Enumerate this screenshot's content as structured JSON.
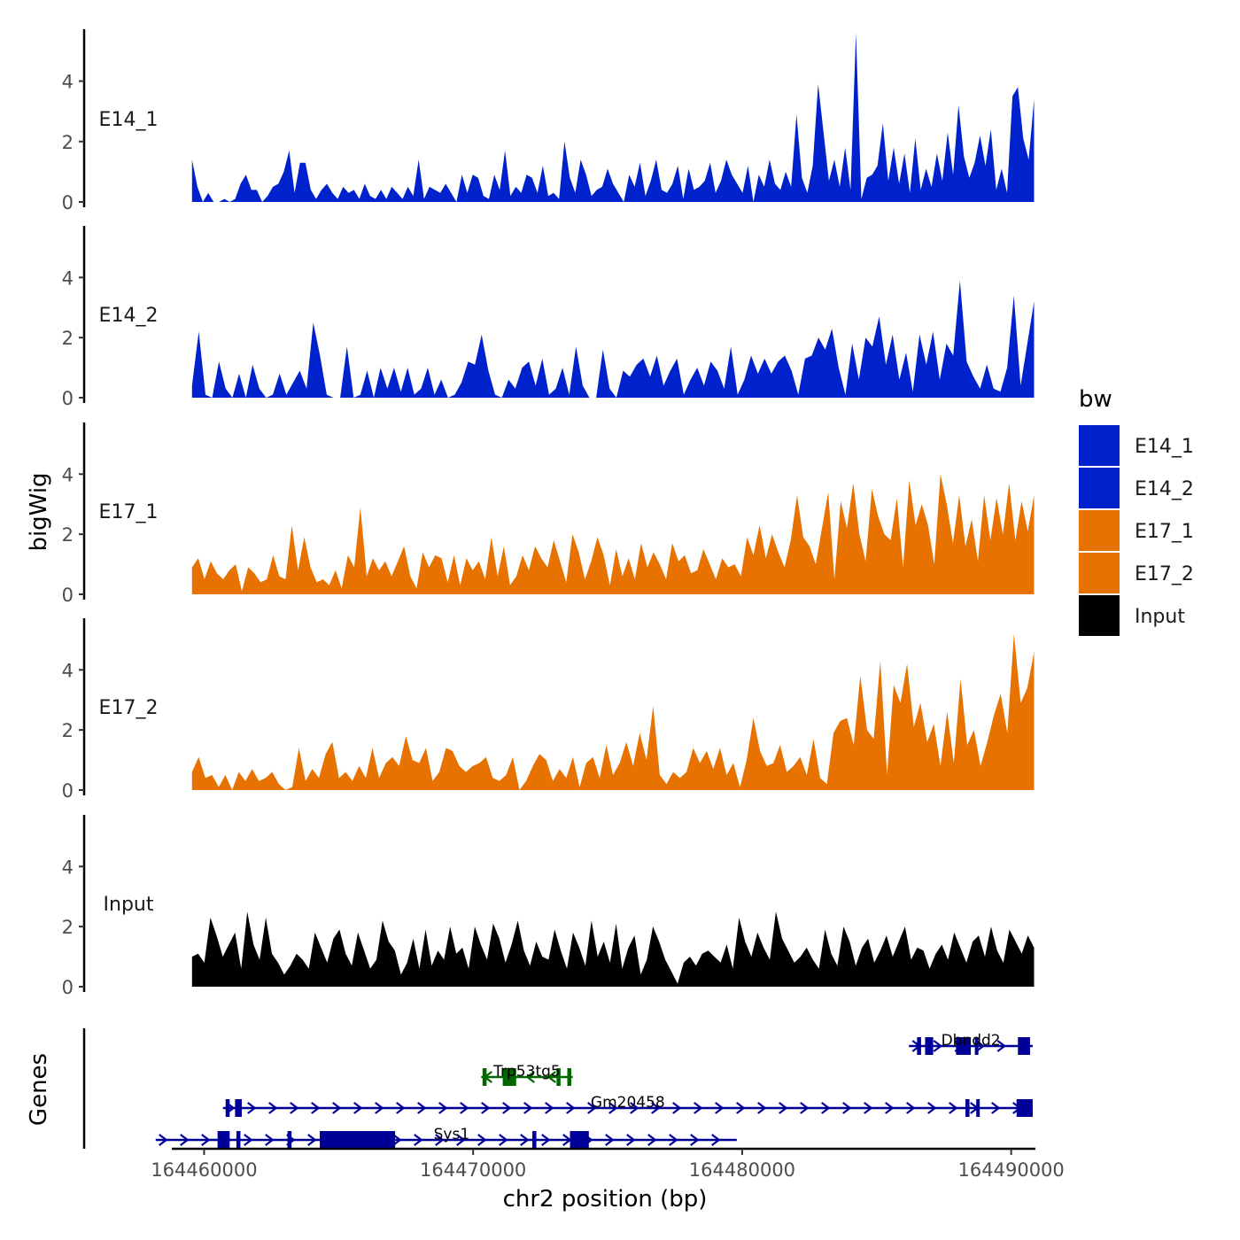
{
  "chart_data": {
    "type": "area",
    "title": "",
    "xlabel": "chr2 position (bp)",
    "ylabel": "bigWig",
    "genes_label": "Genes",
    "xlim": [
      164458800,
      164490900
    ],
    "ylim": [
      0,
      5.6
    ],
    "yticks": [
      0,
      2,
      4
    ],
    "xticks": [
      164460000,
      164470000,
      164480000,
      164490000
    ],
    "xtick_labels": [
      "164460000",
      "164470000",
      "164480000",
      "164490000"
    ],
    "legend": {
      "title": "bw",
      "position": "right",
      "entries": [
        {
          "name": "E14_1",
          "color": "#0022CC"
        },
        {
          "name": "E14_2",
          "color": "#0022CC"
        },
        {
          "name": "E17_1",
          "color": "#E87200"
        },
        {
          "name": "E17_2",
          "color": "#E87200"
        },
        {
          "name": "Input",
          "color": "#000000"
        }
      ]
    },
    "signal_range": [
      164459550,
      164490850
    ],
    "series": [
      {
        "name": "E14_1",
        "label": "E14_1",
        "color": "#0022CC",
        "values": [
          1.4,
          0.5,
          0,
          0.3,
          0,
          0,
          0.1,
          0,
          0.1,
          0.6,
          0.9,
          0.4,
          0.4,
          0,
          0.2,
          0.5,
          0.6,
          1.0,
          1.7,
          0.3,
          1.3,
          1.3,
          0.4,
          0.1,
          0.4,
          0.6,
          0.3,
          0.1,
          0.5,
          0.3,
          0.4,
          0.1,
          0.6,
          0.2,
          0.1,
          0.4,
          0.1,
          0.5,
          0.3,
          0.1,
          0.5,
          0.2,
          1.4,
          0.1,
          0.5,
          0.4,
          0.3,
          0.6,
          0.3,
          0,
          0.9,
          0.3,
          0.9,
          0.8,
          0.2,
          0.1,
          0.9,
          0.4,
          1.7,
          0.2,
          0.5,
          0.3,
          0.9,
          0.8,
          0.3,
          1.2,
          0.2,
          0.3,
          0.1,
          2.0,
          0.8,
          0.3,
          1.4,
          0.9,
          0.2,
          0.4,
          0.5,
          1.1,
          0.6,
          0.3,
          0,
          0.9,
          0.5,
          1.3,
          0.2,
          0.7,
          1.4,
          0.4,
          0.3,
          0.6,
          1.2,
          0.1,
          1.1,
          0.4,
          0.5,
          0.7,
          1.3,
          0.3,
          0.7,
          1.4,
          0.9,
          0.6,
          0.3,
          1.2,
          0,
          0.9,
          0.5,
          1.4,
          0.6,
          0.4,
          1.0,
          0.5,
          2.9,
          0.8,
          0.3,
          1.2,
          3.9,
          2.3,
          0.7,
          1.4,
          0.5,
          1.8,
          0.4,
          5.6,
          0.1,
          0.8,
          0.9,
          1.2,
          2.6,
          0.7,
          1.8,
          0.6,
          1.6,
          0.3,
          2.1,
          0.4,
          1.1,
          0.5,
          1.6,
          0.7,
          2.3,
          0.9,
          3.2,
          1.5,
          0.8,
          1.3,
          2.2,
          1.2,
          2.4,
          0.4,
          1.1,
          0.3,
          3.5,
          3.8,
          2.1,
          1.4,
          3.4
        ]
      },
      {
        "name": "E14_2",
        "label": "E14_2",
        "color": "#0022CC",
        "values": [
          0.4,
          2.2,
          0.1,
          0,
          1.2,
          0.3,
          0,
          0.8,
          0,
          1.1,
          0.3,
          0,
          0.1,
          0.8,
          0.1,
          0.5,
          0.9,
          0.3,
          2.5,
          1.4,
          0.1,
          0,
          0,
          1.7,
          0,
          0.1,
          0.9,
          0,
          1.0,
          0.3,
          1.0,
          0.2,
          1.0,
          0.1,
          0.3,
          1.0,
          0.1,
          0.6,
          0,
          0.1,
          0.5,
          1.2,
          1.1,
          2.1,
          0.9,
          0.1,
          0,
          0.6,
          0.3,
          1.0,
          1.2,
          0.4,
          1.3,
          0.1,
          0.3,
          1.0,
          0.1,
          1.7,
          0.4,
          0,
          0,
          1.6,
          0.3,
          0,
          0.9,
          0.7,
          1.1,
          1.3,
          0.7,
          1.4,
          0.4,
          0.9,
          1.3,
          0.1,
          0.6,
          1.0,
          0.4,
          1.2,
          0.9,
          0.3,
          1.7,
          0.1,
          0.6,
          1.4,
          0.8,
          1.3,
          0.8,
          1.2,
          1.4,
          0.9,
          0.1,
          1.3,
          1.4,
          2.0,
          1.6,
          2.3,
          1.0,
          0.1,
          1.8,
          0.6,
          2.0,
          1.7,
          2.7,
          1.1,
          2.1,
          0.6,
          1.5,
          0.2,
          2.1,
          1.1,
          2.2,
          0.6,
          1.8,
          1.4,
          3.9,
          1.2,
          0.7,
          0.3,
          1.1,
          0.3,
          0.2,
          1.0,
          3.4,
          0.4,
          1.8,
          3.2
        ]
      },
      {
        "name": "E17_1",
        "label": "E17_1",
        "color": "#E87200",
        "values": [
          0.9,
          1.2,
          0.5,
          1.1,
          0.7,
          0.5,
          0.8,
          1.0,
          0.1,
          0.9,
          0.7,
          0.4,
          0.5,
          1.3,
          0.6,
          0.5,
          2.3,
          0.8,
          1.9,
          0.9,
          0.4,
          0.5,
          0.3,
          0.8,
          0.2,
          1.3,
          0.9,
          2.9,
          0.6,
          1.2,
          0.8,
          1.1,
          0.6,
          1.1,
          1.6,
          0.6,
          0.2,
          1.4,
          0.9,
          1.3,
          1.2,
          0.4,
          1.3,
          0.3,
          1.2,
          0.8,
          1.1,
          0.5,
          1.9,
          0.6,
          1.6,
          0.3,
          0.6,
          1.3,
          0.8,
          1.6,
          1.2,
          0.9,
          1.8,
          1.1,
          0.4,
          2.0,
          1.4,
          0.5,
          1.1,
          1.9,
          1.3,
          0.3,
          1.5,
          0.6,
          1.2,
          0.5,
          1.7,
          0.9,
          1.4,
          1.0,
          0.5,
          1.7,
          1.1,
          1.3,
          0.7,
          0.8,
          1.5,
          1.0,
          0.5,
          1.2,
          0.9,
          1.0,
          0.6,
          1.9,
          1.3,
          2.3,
          1.2,
          2.0,
          1.4,
          0.9,
          1.8,
          3.3,
          1.9,
          1.6,
          1.0,
          2.2,
          3.4,
          0.5,
          3.1,
          2.2,
          3.7,
          2.0,
          1.1,
          3.5,
          2.6,
          2.0,
          1.8,
          3.2,
          0.9,
          3.8,
          2.3,
          3.0,
          2.3,
          1.0,
          4.0,
          3.0,
          1.7,
          3.3,
          1.6,
          2.5,
          1.1,
          3.3,
          1.8,
          3.2,
          2.0,
          3.7,
          1.8,
          3.1,
          2.1,
          3.3
        ]
      },
      {
        "name": "E17_2",
        "label": "E17_2",
        "color": "#E87200",
        "values": [
          0.6,
          1.1,
          0.4,
          0.5,
          0.1,
          0.5,
          0,
          0.6,
          0.3,
          0.7,
          0.3,
          0.4,
          0.6,
          0.2,
          0,
          0.1,
          1.4,
          0.3,
          0.7,
          0.4,
          1.2,
          1.6,
          0.4,
          0.6,
          0.3,
          0.8,
          0.4,
          1.4,
          0.4,
          0.9,
          1.1,
          0.8,
          1.8,
          1.0,
          0.9,
          1.4,
          0.3,
          0.6,
          1.4,
          1.3,
          0.8,
          0.6,
          0.8,
          0.9,
          1.1,
          0.4,
          0.3,
          0.5,
          1.1,
          0,
          0.3,
          0.8,
          1.2,
          1.0,
          0.3,
          0.7,
          0.4,
          1.1,
          0.1,
          0.9,
          1.1,
          0.4,
          1.5,
          0.5,
          0.9,
          1.6,
          0.8,
          1.9,
          1.0,
          2.8,
          0.5,
          0.2,
          0.6,
          0.4,
          0.6,
          1.4,
          0.9,
          1.3,
          0.7,
          1.4,
          0.5,
          0.9,
          0.1,
          1.0,
          2.4,
          1.3,
          0.8,
          0.9,
          1.5,
          0.6,
          0.8,
          1.1,
          0.5,
          1.7,
          0.4,
          0.2,
          1.9,
          2.3,
          2.4,
          1.5,
          3.8,
          2.0,
          1.7,
          4.3,
          0.5,
          3.5,
          2.9,
          4.2,
          2.1,
          2.9,
          1.6,
          2.2,
          0.8,
          2.6,
          0.9,
          3.7,
          1.5,
          2.0,
          0.8,
          1.6,
          2.5,
          3.2,
          1.9,
          5.2,
          2.9,
          3.4,
          4.6
        ]
      },
      {
        "name": "Input",
        "label": "Input",
        "color": "#000000",
        "values": [
          1.0,
          1.1,
          0.8,
          2.3,
          1.7,
          1.0,
          1.4,
          1.8,
          0.6,
          2.5,
          1.4,
          0.9,
          2.3,
          1.1,
          0.8,
          0.4,
          0.7,
          1.1,
          0.9,
          0.6,
          1.8,
          1.3,
          0.8,
          1.6,
          1.9,
          1.1,
          0.7,
          1.8,
          1.2,
          0.6,
          0.9,
          2.2,
          1.5,
          1.2,
          0.4,
          0.8,
          1.6,
          0.6,
          1.9,
          0.7,
          1.2,
          0.9,
          2.0,
          1.1,
          1.3,
          0.6,
          2.0,
          1.4,
          0.9,
          2.1,
          1.6,
          0.8,
          1.4,
          2.2,
          1.2,
          0.7,
          1.5,
          1.0,
          0.9,
          1.9,
          1.2,
          0.6,
          1.8,
          1.3,
          0.7,
          2.2,
          1.0,
          1.5,
          0.8,
          2.1,
          0.6,
          1.3,
          1.7,
          0.4,
          0.9,
          2.0,
          1.5,
          0.9,
          0.5,
          0.1,
          0.8,
          1.0,
          0.7,
          1.1,
          1.2,
          1.0,
          0.8,
          1.4,
          0.6,
          2.3,
          1.5,
          1.0,
          1.8,
          1.3,
          0.9,
          2.5,
          1.6,
          1.2,
          0.8,
          1.0,
          1.3,
          0.9,
          0.6,
          1.9,
          1.1,
          0.7,
          2.0,
          1.5,
          0.7,
          1.3,
          1.6,
          0.8,
          1.2,
          1.7,
          1.0,
          1.5,
          2.0,
          0.9,
          1.3,
          1.2,
          0.6,
          1.1,
          1.4,
          0.9,
          1.8,
          1.3,
          0.8,
          1.5,
          1.7,
          1.0,
          2.0,
          1.2,
          0.8,
          1.9,
          1.5,
          1.1,
          1.7,
          1.3
        ]
      }
    ],
    "genes": [
      {
        "name": "Dbndd2",
        "color": "#000099",
        "strand": "+",
        "start": 164486200,
        "end": 164490800,
        "row": 0,
        "exons": [
          [
            164486500,
            164486650
          ],
          [
            164486800,
            164487100
          ],
          [
            164487950,
            164488500
          ],
          [
            164488650,
            164488750
          ],
          [
            164490250,
            164490700
          ]
        ]
      },
      {
        "name": "Trp53tg5",
        "color": "#006600",
        "strand": "-",
        "start": 164470300,
        "end": 164473700,
        "row": 1,
        "exons": [
          [
            164470350,
            164470500
          ],
          [
            164471100,
            164471600
          ],
          [
            164473100,
            164473250
          ],
          [
            164473500,
            164473650
          ]
        ]
      },
      {
        "name": "Gm20458",
        "color": "#000099",
        "strand": "+",
        "start": 164460700,
        "end": 164490800,
        "row": 2,
        "exons": [
          [
            164460800,
            164460950
          ],
          [
            164461150,
            164461400
          ],
          [
            164488300,
            164488450
          ],
          [
            164488700,
            164488800
          ],
          [
            164490200,
            164490800
          ]
        ]
      },
      {
        "name": "Sys1",
        "color": "#000099",
        "strand": "+",
        "start": 164458200,
        "end": 164479800,
        "row": 3,
        "exons": [
          [
            164460500,
            164460950
          ],
          [
            164461200,
            164461350
          ],
          [
            164463100,
            164463250
          ],
          [
            164464300,
            164467100
          ],
          [
            164472200,
            164472350
          ],
          [
            164473600,
            164474300
          ]
        ]
      }
    ]
  }
}
